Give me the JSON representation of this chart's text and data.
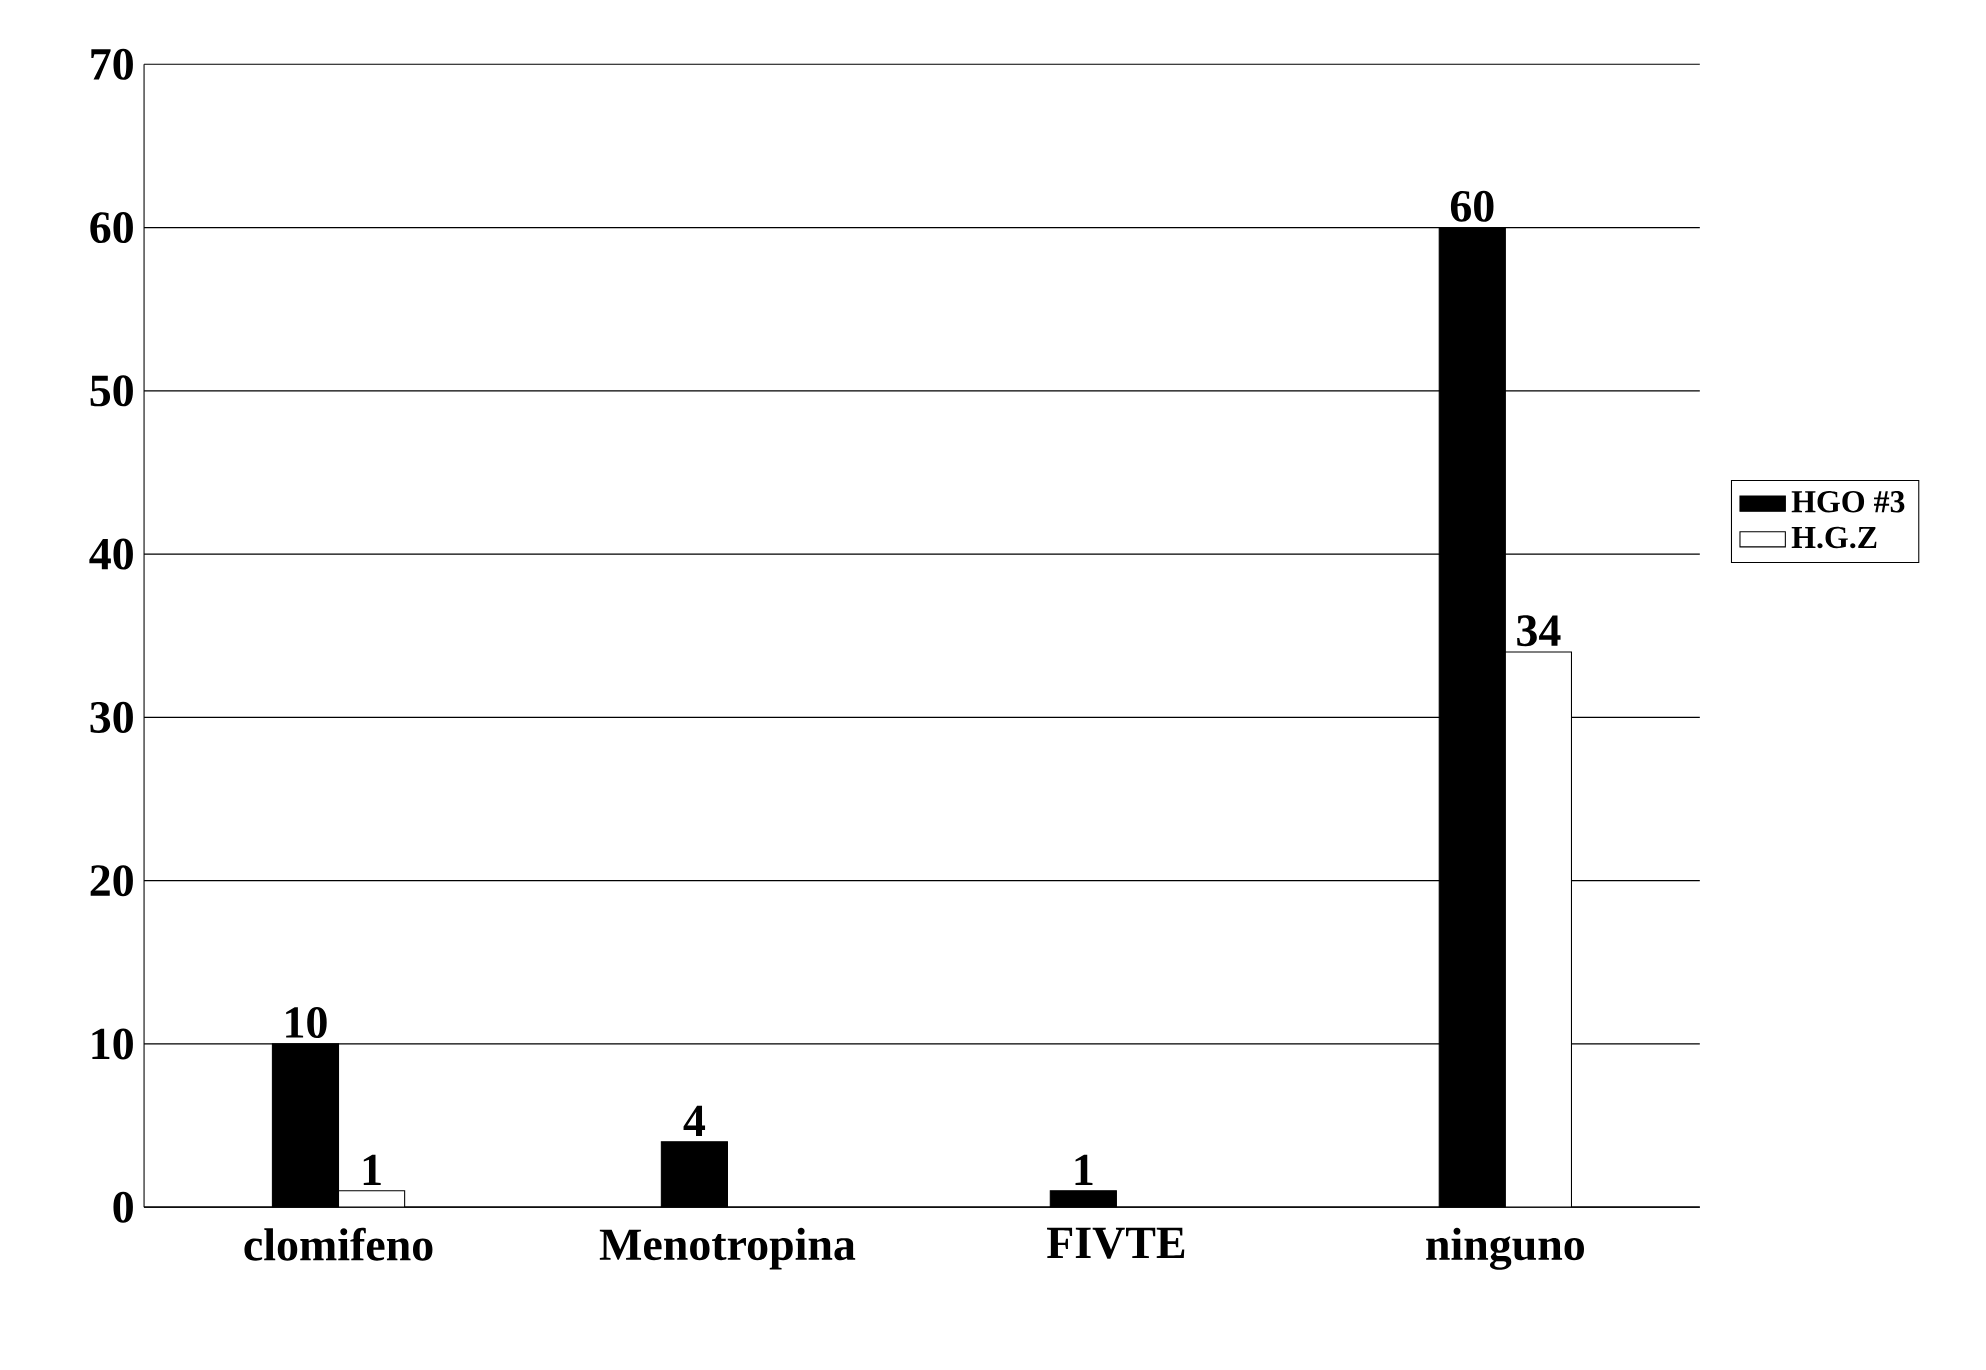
{
  "chart_data": {
    "type": "bar",
    "categories": [
      "clomifeno",
      "Menotropina",
      "FIVTE",
      "ninguno"
    ],
    "series": [
      {
        "name": "HGO #3",
        "color": "#000000",
        "values": [
          10,
          4,
          1,
          60
        ],
        "value_labels": [
          "10",
          "4",
          "1",
          "60"
        ]
      },
      {
        "name": "H.G.Z",
        "color": "#ffffff",
        "values": [
          1,
          null,
          null,
          34
        ],
        "value_labels": [
          "1",
          null,
          null,
          "34"
        ]
      }
    ],
    "ylim": [
      0,
      70
    ],
    "yticks": [
      0,
      10,
      20,
      30,
      40,
      50,
      60,
      70
    ],
    "grid": "y",
    "legend": "right"
  }
}
